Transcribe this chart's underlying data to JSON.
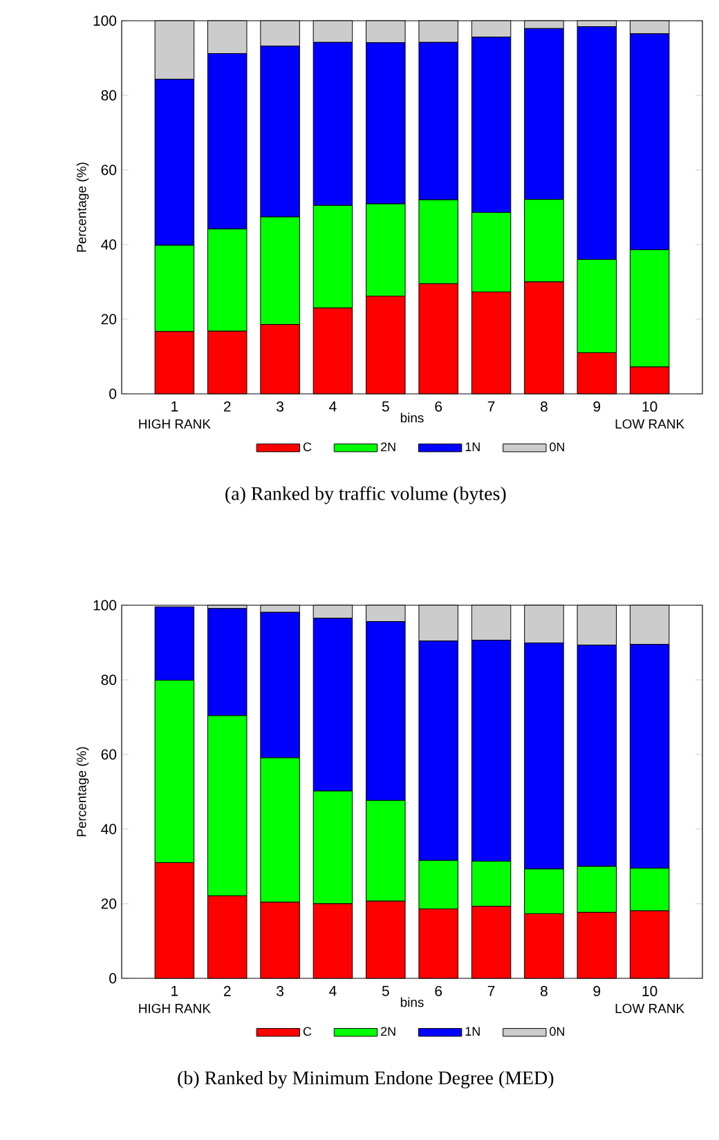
{
  "chart_data": [
    {
      "type": "bar",
      "title": "(a) Ranked by traffic volume (bytes)",
      "xlabel": "bins",
      "ylabel": "Percentage (%)",
      "stacked": true,
      "legend": "bottom",
      "categories": [
        "1",
        "2",
        "3",
        "4",
        "5",
        "6",
        "7",
        "8",
        "9",
        "10"
      ],
      "ylim": [
        0,
        100
      ],
      "yticks": [
        0,
        20,
        40,
        60,
        80,
        100
      ],
      "annotations": [
        "HIGH RANK",
        "LOW RANK"
      ],
      "series": [
        {
          "name": "C",
          "color": "#ff0000",
          "values": [
            16.7,
            16.8,
            18.6,
            23,
            26.2,
            29.5,
            27.3,
            30,
            11,
            7.2
          ]
        },
        {
          "name": "2N",
          "color": "#00ff00",
          "values": [
            23.1,
            27.4,
            28.8,
            27.5,
            24.7,
            22.5,
            21.3,
            22.1,
            25,
            31.4
          ]
        },
        {
          "name": "1N",
          "color": "#0000ff",
          "values": [
            44.5,
            47,
            45.8,
            43.7,
            43.2,
            42.2,
            47,
            45.8,
            62.4,
            57.9
          ]
        },
        {
          "name": "0N",
          "color": "#cccccc",
          "values": [
            15.7,
            8.8,
            6.8,
            5.8,
            5.9,
            5.8,
            4.4,
            2.1,
            1.6,
            3.5
          ]
        }
      ]
    },
    {
      "type": "bar",
      "title": "(b) Ranked by Minimum Endone Degree (MED)",
      "xlabel": "bins",
      "ylabel": "Percentage (%)",
      "stacked": true,
      "legend": "bottom",
      "categories": [
        "1",
        "2",
        "3",
        "4",
        "5",
        "6",
        "7",
        "8",
        "9",
        "10"
      ],
      "ylim": [
        0,
        100
      ],
      "yticks": [
        0,
        20,
        40,
        60,
        80,
        100
      ],
      "annotations": [
        "HIGH RANK",
        "LOW RANK"
      ],
      "series": [
        {
          "name": "C",
          "color": "#ff0000",
          "values": [
            31,
            22.1,
            20.4,
            20,
            20.7,
            18.6,
            19.3,
            17.3,
            17.7,
            18.1
          ]
        },
        {
          "name": "2N",
          "color": "#00ff00",
          "values": [
            48.9,
            48.3,
            38.7,
            30.2,
            27,
            13,
            12.1,
            12,
            12.3,
            11.4
          ]
        },
        {
          "name": "1N",
          "color": "#0000ff",
          "values": [
            19.7,
            28.7,
            39,
            46.3,
            47.9,
            58.8,
            59.2,
            60.6,
            59.3,
            60
          ]
        },
        {
          "name": "0N",
          "color": "#cccccc",
          "values": [
            null,
            0.9,
            1.9,
            3.5,
            4.4,
            9.6,
            9.4,
            10.1,
            10.7,
            10.5
          ]
        }
      ]
    }
  ]
}
